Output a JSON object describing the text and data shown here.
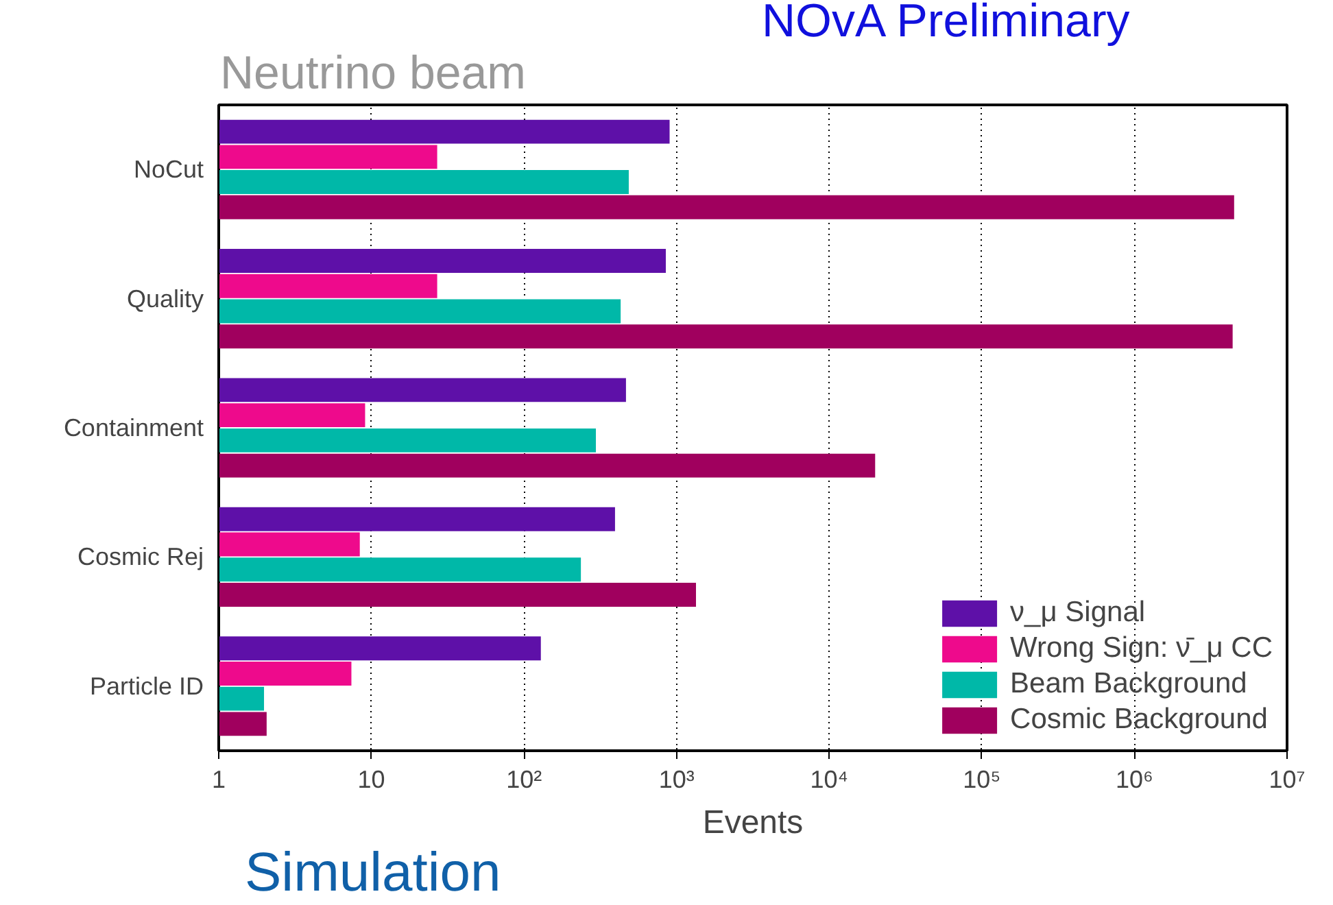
{
  "chart_data": {
    "type": "bar",
    "orientation": "horizontal",
    "log": "x",
    "xlabel": "Events",
    "categories": [
      "NoCut",
      "Quality",
      "Containment",
      "Cosmic Rej",
      "Particle ID"
    ],
    "series": [
      {
        "name": "ν_μ Signal",
        "color": "#5e10a8",
        "values": [
          900,
          850,
          466,
          395,
          129
        ]
      },
      {
        "name": "Wrong Sign: ν̄_μ CC",
        "color": "#ee0a8c",
        "values": [
          27,
          27,
          9.1,
          8.4,
          7.4
        ]
      },
      {
        "name": "Beam Background",
        "color": "#00b8a8",
        "values": [
          486,
          430,
          296,
          236,
          1.98
        ]
      },
      {
        "name": "Cosmic Background",
        "color": "#a0005e",
        "values": [
          4500000,
          4400000,
          20000,
          1340,
          2.06
        ]
      }
    ],
    "xlim": [
      1,
      10000000
    ],
    "xticks": [
      1,
      10,
      {
        "value": 100,
        "label": "10²"
      },
      {
        "value": 1000,
        "label": "10³"
      },
      {
        "value": 10000,
        "label": "10⁴"
      },
      {
        "value": 100000,
        "label": "10⁵"
      },
      {
        "value": 1000000,
        "label": "10⁶"
      },
      {
        "value": 10000000,
        "label": "10⁷"
      }
    ],
    "grid": "x",
    "legend": "bottom right",
    "annotations": [
      "Neutrino beam",
      "NOvA Preliminary",
      "Simulation"
    ]
  }
}
